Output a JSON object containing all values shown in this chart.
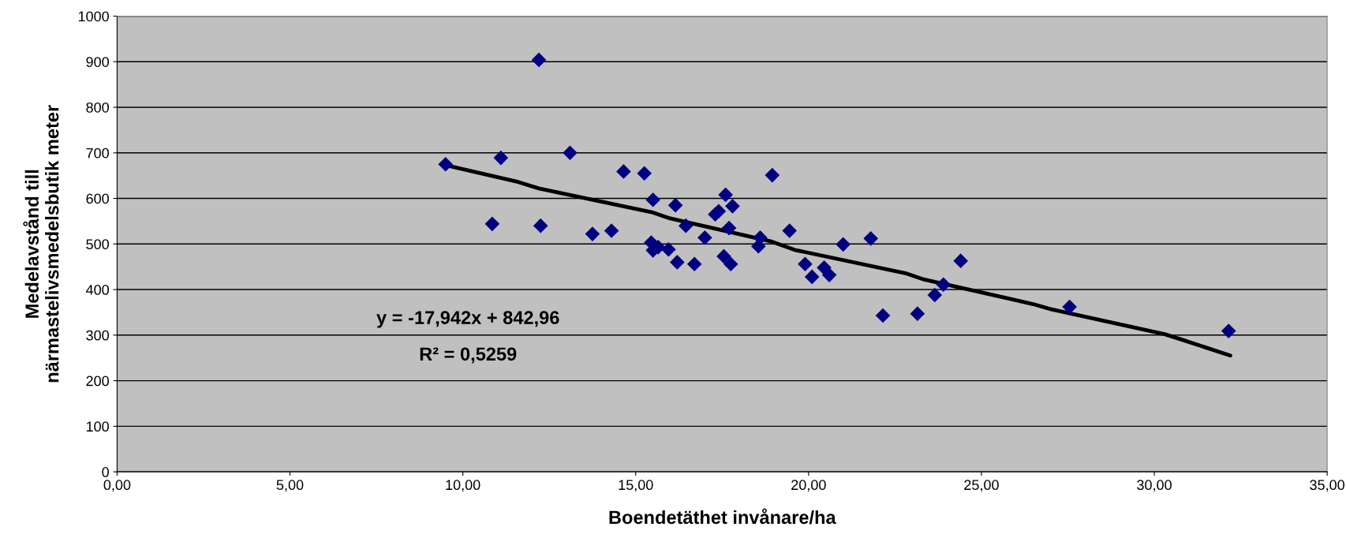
{
  "chart_data": {
    "type": "scatter",
    "xlabel": "Boendetäthet invånare/ha",
    "ylabel": "Medelavstånd till\nnärmastelivsmedelsbutik meter",
    "xlim": [
      0,
      35
    ],
    "ylim": [
      0,
      1000
    ],
    "xticks": [
      {
        "value": 0,
        "label": "0,00"
      },
      {
        "value": 5,
        "label": "5,00"
      },
      {
        "value": 10,
        "label": "10,00"
      },
      {
        "value": 15,
        "label": "15,00"
      },
      {
        "value": 20,
        "label": "20,00"
      },
      {
        "value": 25,
        "label": "25,00"
      },
      {
        "value": 30,
        "label": "30,00"
      },
      {
        "value": 35,
        "label": "35,00"
      }
    ],
    "yticks": [
      0,
      100,
      200,
      300,
      400,
      500,
      600,
      700,
      800,
      900,
      1000
    ],
    "grid": "y",
    "marker": "diamond",
    "legend": false,
    "series": [
      {
        "color": "#000080",
        "x": [
          9.5,
          10.85,
          11.1,
          12.2,
          12.25,
          13.1,
          13.75,
          14.3,
          14.65,
          15.25,
          15.5,
          15.45,
          15.5,
          15.65,
          15.95,
          16.15,
          16.2,
          16.45,
          16.7,
          17.0,
          17.3,
          17.4,
          17.6,
          17.55,
          17.7,
          17.75,
          17.8,
          18.55,
          18.6,
          18.95,
          19.45,
          19.9,
          20.1,
          20.45,
          20.6,
          21.0,
          21.8,
          22.15,
          23.15,
          23.65,
          23.9,
          24.4,
          27.55,
          32.15
        ],
        "values": [
          675,
          544,
          689,
          904,
          540,
          700,
          522,
          529,
          659,
          655,
          597,
          503,
          486,
          493,
          488,
          585,
          460,
          540,
          456,
          514,
          565,
          572,
          608,
          473,
          535,
          456,
          583,
          495,
          514,
          651,
          529,
          456,
          428,
          448,
          432,
          499,
          512,
          343,
          347,
          388,
          411,
          463,
          362,
          309
        ]
      },
      {
        "type": "line",
        "color": "#000000",
        "marker": "none",
        "x": [
          9.5,
          11.6,
          12.2,
          15.5,
          16.0,
          18.9,
          19.6,
          22.8,
          23.3,
          26.5,
          27.0,
          30.3,
          30.8,
          32.2
        ],
        "values": [
          673,
          636,
          622,
          569,
          556,
          506,
          487,
          436,
          423,
          368,
          357,
          302,
          290,
          255
        ]
      }
    ],
    "annotations": [
      "y = -17,942x + 842,96",
      "R² = 0,5259"
    ]
  }
}
